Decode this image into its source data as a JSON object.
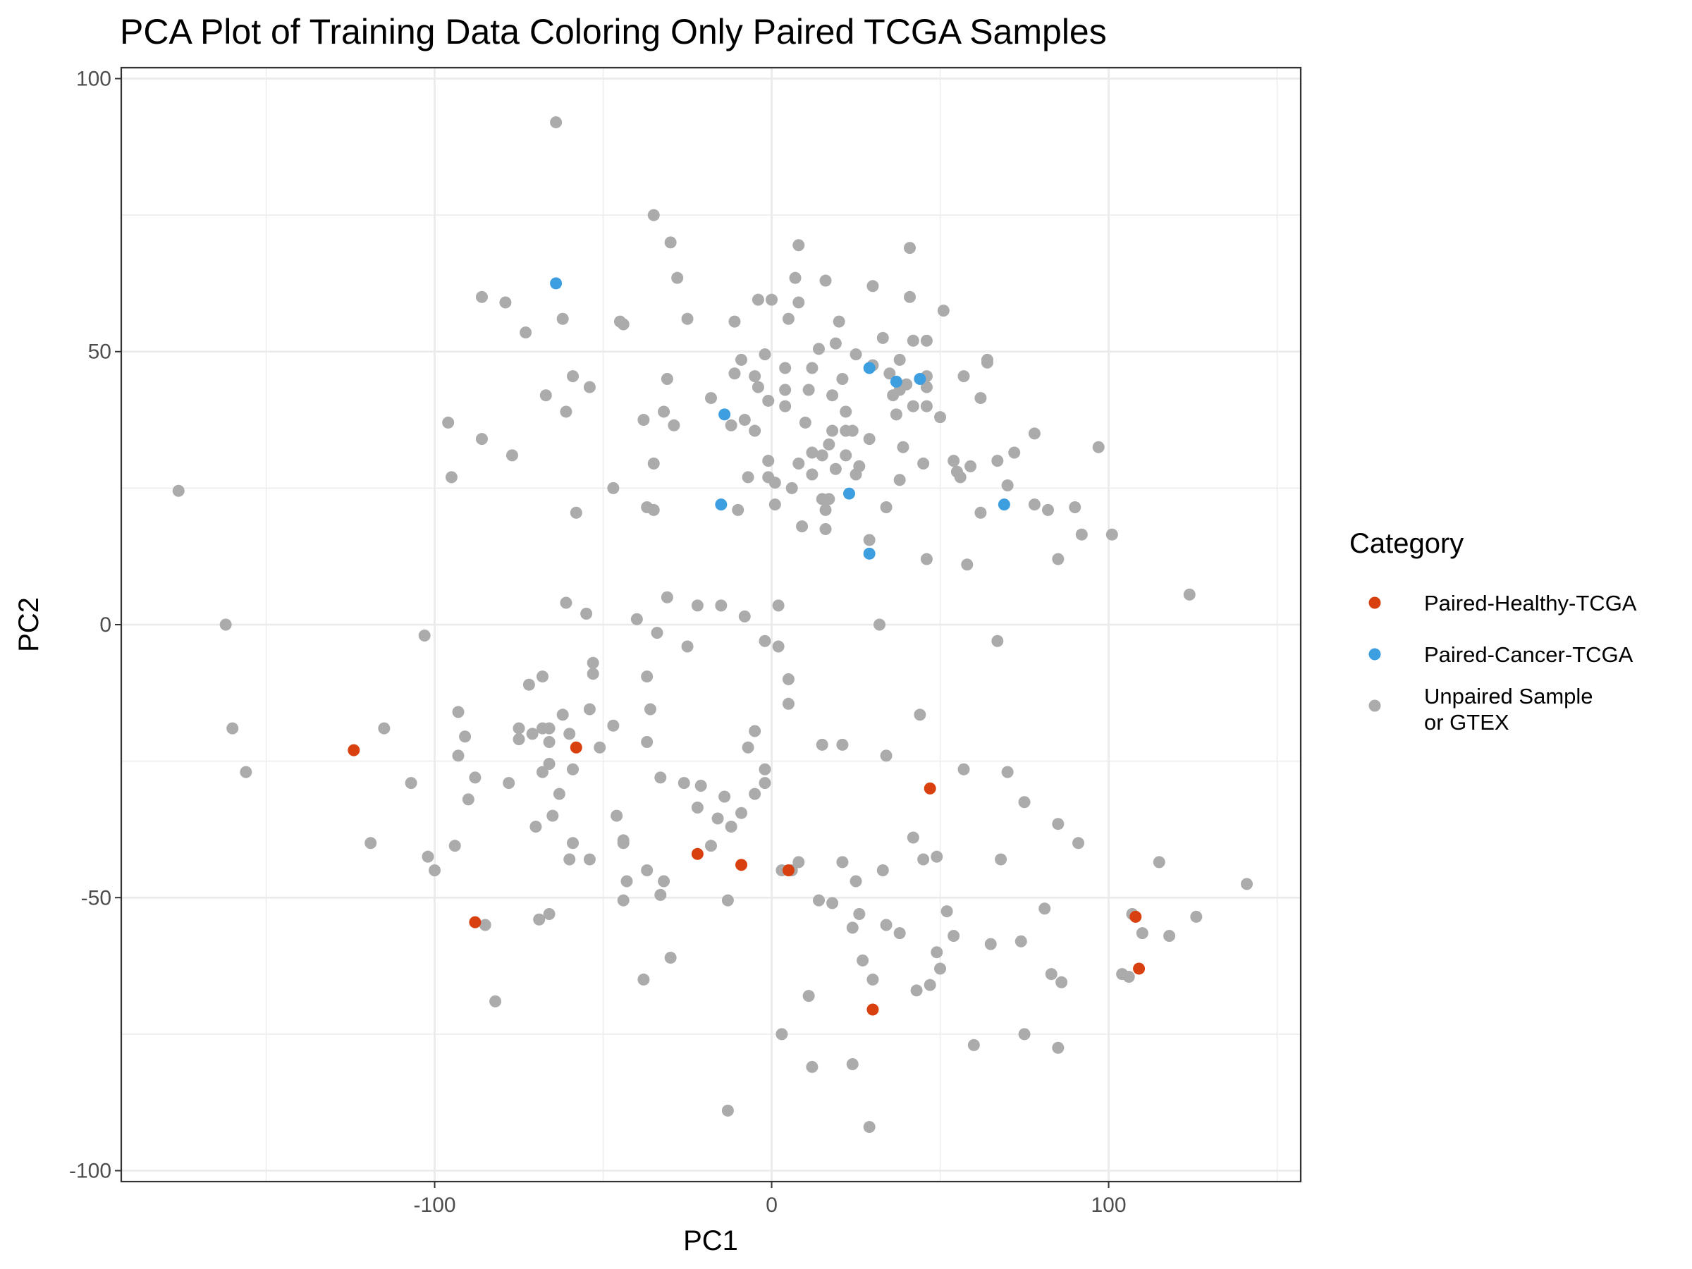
{
  "chart_data": {
    "type": "scatter",
    "title": "PCA Plot of Training Data Coloring Only Paired TCGA Samples",
    "xlabel": "PC1",
    "ylabel": "PC2",
    "xlim": [
      -193,
      157
    ],
    "ylim": [
      -102,
      102
    ],
    "x_ticks": [
      -100,
      0,
      100
    ],
    "x_tick_labels": [
      "-100",
      "0",
      "100"
    ],
    "y_ticks": [
      -100,
      -50,
      0,
      50,
      100
    ],
    "y_tick_labels": [
      "-100",
      "-50",
      "0",
      "50",
      "100"
    ],
    "grid": true,
    "legend": {
      "title": "Category",
      "position": "right"
    },
    "colors": {
      "Paired-Healthy-TCGA": "#d9400f",
      "Paired-Cancer-TCGA": "#3d9ee0",
      "Unpaired Sample or GTEX": "#ababab",
      "grid": "#ebebeb",
      "panel_border": "#333333"
    },
    "series": [
      {
        "name": "Unpaired Sample or GTEX",
        "legend_lines": [
          "Unpaired Sample",
          "or GTEX"
        ],
        "points": [
          [
            -64,
            92
          ],
          [
            -35,
            75
          ],
          [
            -30,
            70
          ],
          [
            8,
            69.5
          ],
          [
            41,
            69
          ],
          [
            -28,
            63.5
          ],
          [
            -86,
            60
          ],
          [
            -79,
            59
          ],
          [
            -73,
            53.5
          ],
          [
            -62,
            56
          ],
          [
            -25,
            56
          ],
          [
            -11,
            55.5
          ],
          [
            -45,
            55.5
          ],
          [
            -44,
            55
          ],
          [
            -4,
            59.5
          ],
          [
            0,
            59.5
          ],
          [
            7,
            63.5
          ],
          [
            16,
            63
          ],
          [
            30,
            62
          ],
          [
            41,
            60
          ],
          [
            51,
            57.5
          ],
          [
            8,
            59
          ],
          [
            5,
            56
          ],
          [
            20,
            55.5
          ],
          [
            14,
            50.5
          ],
          [
            19,
            51.5
          ],
          [
            -67,
            42
          ],
          [
            -59,
            45.5
          ],
          [
            -54,
            43.5
          ],
          [
            -61,
            39
          ],
          [
            -96,
            37
          ],
          [
            -86,
            34
          ],
          [
            -77,
            31
          ],
          [
            -95,
            27
          ],
          [
            -38,
            37.5
          ],
          [
            -31,
            45
          ],
          [
            -32,
            39
          ],
          [
            -29,
            36.5
          ],
          [
            -35,
            29.5
          ],
          [
            -37,
            21.5
          ],
          [
            -35,
            21
          ],
          [
            -47,
            25
          ],
          [
            -58,
            20.5
          ],
          [
            -18,
            41.5
          ],
          [
            -9,
            48.5
          ],
          [
            -2,
            49.5
          ],
          [
            -11,
            46
          ],
          [
            -5,
            45.5
          ],
          [
            -4,
            43.5
          ],
          [
            -1,
            41
          ],
          [
            4,
            47
          ],
          [
            4,
            43
          ],
          [
            4,
            40
          ],
          [
            -8,
            37.5
          ],
          [
            -12,
            36.5
          ],
          [
            -5,
            35.5
          ],
          [
            11,
            43
          ],
          [
            12,
            47
          ],
          [
            18,
            42
          ],
          [
            21,
            45
          ],
          [
            25,
            49.5
          ],
          [
            30,
            47.5
          ],
          [
            33,
            52.5
          ],
          [
            35,
            46
          ],
          [
            38,
            48.5
          ],
          [
            36,
            42
          ],
          [
            38,
            43
          ],
          [
            40,
            44
          ],
          [
            42,
            52
          ],
          [
            46,
            52
          ],
          [
            46,
            45.5
          ],
          [
            46,
            43.5
          ],
          [
            42,
            40
          ],
          [
            46,
            40
          ],
          [
            37,
            38.5
          ],
          [
            39,
            32.5
          ],
          [
            50,
            38
          ],
          [
            22,
            39
          ],
          [
            18,
            35.5
          ],
          [
            22,
            35.5
          ],
          [
            24,
            35.5
          ],
          [
            17,
            33
          ],
          [
            12,
            31.5
          ],
          [
            15,
            31
          ],
          [
            22,
            31
          ],
          [
            10,
            37
          ],
          [
            -1,
            30
          ],
          [
            8,
            29.5
          ],
          [
            12,
            27.5
          ],
          [
            19,
            28.5
          ],
          [
            26,
            29
          ],
          [
            25,
            27.5
          ],
          [
            29,
            34
          ],
          [
            45,
            29.5
          ],
          [
            38,
            26.5
          ],
          [
            -7,
            27
          ],
          [
            -1,
            27
          ],
          [
            1,
            26
          ],
          [
            6,
            25
          ],
          [
            15,
            23
          ],
          [
            17,
            23
          ],
          [
            16,
            21
          ],
          [
            34,
            21.5
          ],
          [
            -10,
            21
          ],
          [
            1,
            22
          ],
          [
            9,
            18
          ],
          [
            16,
            17.5
          ],
          [
            29,
            15.5
          ],
          [
            46,
            12
          ],
          [
            54,
            30
          ],
          [
            55,
            28
          ],
          [
            56,
            27
          ],
          [
            59,
            29
          ],
          [
            57,
            45.5
          ],
          [
            62,
            41.5
          ],
          [
            64,
            48
          ],
          [
            64,
            48.5
          ],
          [
            67,
            30
          ],
          [
            70,
            25.5
          ],
          [
            72,
            31.5
          ],
          [
            78,
            35
          ],
          [
            78,
            22
          ],
          [
            82,
            21
          ],
          [
            90,
            21.5
          ],
          [
            92,
            16.5
          ],
          [
            101,
            16.5
          ],
          [
            97,
            32.5
          ],
          [
            85,
            12
          ],
          [
            58,
            11
          ],
          [
            62,
            20.5
          ],
          [
            -176,
            24.5
          ],
          [
            -162,
            0
          ],
          [
            -160,
            -19
          ],
          [
            -156,
            -27
          ],
          [
            -115,
            -19
          ],
          [
            -103,
            -2
          ],
          [
            -93,
            -16
          ],
          [
            -91,
            -20.5
          ],
          [
            -93,
            -24
          ],
          [
            -90,
            -32
          ],
          [
            -88,
            -28
          ],
          [
            -78,
            -29
          ],
          [
            -75,
            -19
          ],
          [
            -75,
            -21
          ],
          [
            -72,
            -11
          ],
          [
            -71,
            -20
          ],
          [
            -68,
            -19
          ],
          [
            -66,
            -19
          ],
          [
            -68,
            -9.5
          ],
          [
            -62,
            -16.5
          ],
          [
            -60,
            -20
          ],
          [
            -66,
            -21.5
          ],
          [
            -68,
            -27
          ],
          [
            -66,
            -25.5
          ],
          [
            -63,
            -31
          ],
          [
            -65,
            -35
          ],
          [
            -59,
            -26.5
          ],
          [
            -59,
            -40
          ],
          [
            -60,
            -43
          ],
          [
            -54,
            -43
          ],
          [
            -70,
            -37
          ],
          [
            -66,
            -53
          ],
          [
            -69,
            -54
          ],
          [
            -85,
            -55
          ],
          [
            -82,
            -69
          ],
          [
            -94,
            -40.5
          ],
          [
            -102,
            -42.5
          ],
          [
            -100,
            -45
          ],
          [
            -107,
            -29
          ],
          [
            -119,
            -40
          ],
          [
            -53,
            -9
          ],
          [
            -53,
            -7
          ],
          [
            -54,
            -15.5
          ],
          [
            -51,
            -22.5
          ],
          [
            -47,
            -18.5
          ],
          [
            -46,
            -35
          ],
          [
            -44,
            -39.5
          ],
          [
            -44,
            -40
          ],
          [
            -44,
            -50.5
          ],
          [
            -43,
            -47
          ],
          [
            -38,
            -65
          ],
          [
            -37,
            -45
          ],
          [
            -33,
            -49.5
          ],
          [
            -32,
            -47
          ],
          [
            -30,
            -61
          ],
          [
            -33,
            -28
          ],
          [
            -37,
            -21.5
          ],
          [
            -36,
            -15.5
          ],
          [
            -37,
            -9.5
          ],
          [
            -34,
            -1.5
          ],
          [
            -40,
            1
          ],
          [
            -55,
            2
          ],
          [
            -61,
            4
          ],
          [
            -31,
            5
          ],
          [
            -22,
            3.5
          ],
          [
            -15,
            3.5
          ],
          [
            -8,
            1.5
          ],
          [
            2,
            3.5
          ],
          [
            -25,
            -4
          ],
          [
            -2,
            -3
          ],
          [
            2,
            -4
          ],
          [
            5,
            -10
          ],
          [
            5,
            -14.5
          ],
          [
            -26,
            -29
          ],
          [
            -21,
            -29.5
          ],
          [
            -22,
            -33.5
          ],
          [
            -18,
            -40.5
          ],
          [
            -16,
            -35.5
          ],
          [
            -14,
            -31.5
          ],
          [
            -12,
            -37
          ],
          [
            -13,
            -50.5
          ],
          [
            -5,
            -19.5
          ],
          [
            -7,
            -22.5
          ],
          [
            -2,
            -26.5
          ],
          [
            -2,
            -29
          ],
          [
            -5,
            -31
          ],
          [
            -9,
            -34.5
          ],
          [
            3,
            -45
          ],
          [
            6,
            -45
          ],
          [
            8,
            -43.5
          ],
          [
            14,
            -50.5
          ],
          [
            18,
            -51
          ],
          [
            15,
            -22
          ],
          [
            21,
            -22
          ],
          [
            21,
            -43.5
          ],
          [
            25,
            -47
          ],
          [
            24,
            -55.5
          ],
          [
            26,
            -53
          ],
          [
            27,
            -61.5
          ],
          [
            30,
            -65
          ],
          [
            34,
            -24
          ],
          [
            32,
            0
          ],
          [
            44,
            -16.5
          ],
          [
            33,
            -45
          ],
          [
            34,
            -55
          ],
          [
            38,
            -56.5
          ],
          [
            42,
            -39
          ],
          [
            43,
            -67
          ],
          [
            45,
            -43
          ],
          [
            47,
            -66
          ],
          [
            49,
            -42.5
          ],
          [
            49,
            -60
          ],
          [
            50,
            -63
          ],
          [
            52,
            -52.5
          ],
          [
            54,
            -57
          ],
          [
            57,
            -26.5
          ],
          [
            60,
            -77
          ],
          [
            65,
            -58.5
          ],
          [
            67,
            -3
          ],
          [
            68,
            -43
          ],
          [
            70,
            -27
          ],
          [
            74,
            -58
          ],
          [
            75,
            -75
          ],
          [
            75,
            -32.5
          ],
          [
            81,
            -52
          ],
          [
            83,
            -64
          ],
          [
            85,
            -36.5
          ],
          [
            85,
            -77.5
          ],
          [
            86,
            -65.5
          ],
          [
            91,
            -40
          ],
          [
            104,
            -64
          ],
          [
            106,
            -64.5
          ],
          [
            107,
            -53
          ],
          [
            110,
            -56.5
          ],
          [
            115,
            -43.5
          ],
          [
            118,
            -57
          ],
          [
            126,
            -53.5
          ],
          [
            141,
            -47.5
          ],
          [
            124,
            5.5
          ],
          [
            3,
            -75
          ],
          [
            11,
            -68
          ],
          [
            12,
            -81
          ],
          [
            24,
            -80.5
          ],
          [
            -13,
            -89
          ],
          [
            29,
            -92
          ]
        ]
      },
      {
        "name": "Paired-Healthy-TCGA",
        "legend_lines": [
          "Paired-Healthy-TCGA"
        ],
        "points": [
          [
            -124,
            -23
          ],
          [
            -58,
            -22.5
          ],
          [
            -88,
            -54.5
          ],
          [
            -22,
            -42
          ],
          [
            -9,
            -44
          ],
          [
            5,
            -45
          ],
          [
            47,
            -30
          ],
          [
            30,
            -70.5
          ],
          [
            108,
            -53.5
          ],
          [
            109,
            -63
          ]
        ]
      },
      {
        "name": "Paired-Cancer-TCGA",
        "legend_lines": [
          "Paired-Cancer-TCGA"
        ],
        "points": [
          [
            -64,
            62.5
          ],
          [
            -14,
            38.5
          ],
          [
            -15,
            22
          ],
          [
            23,
            24
          ],
          [
            29,
            47
          ],
          [
            37,
            44.5
          ],
          [
            44,
            45
          ],
          [
            69,
            22
          ],
          [
            29,
            13
          ]
        ]
      }
    ],
    "legend_order": [
      "Paired-Healthy-TCGA",
      "Paired-Cancer-TCGA",
      "Unpaired Sample or GTEX"
    ]
  }
}
